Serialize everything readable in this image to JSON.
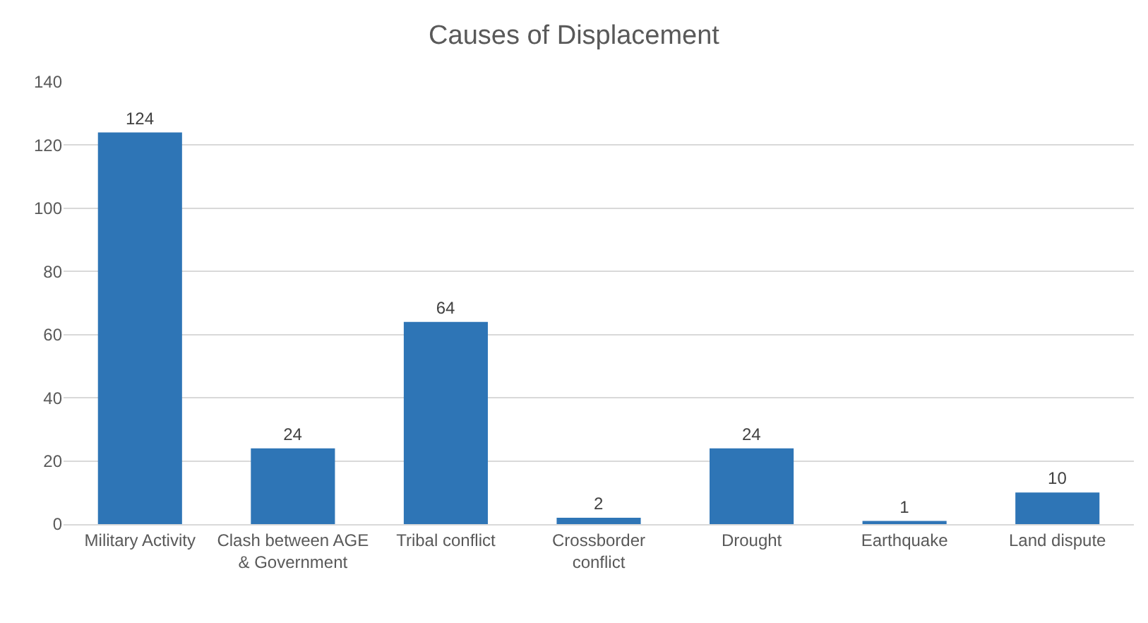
{
  "chart_data": {
    "type": "bar",
    "title": "Causes of Displacement",
    "categories": [
      "Military Activity",
      "Clash between AGE & Government",
      "Tribal conflict",
      "Crossborder conflict",
      "Drought",
      "Earthquake",
      "Land dispute"
    ],
    "values": [
      124,
      24,
      64,
      2,
      24,
      1,
      10
    ],
    "color": "#2e75b6",
    "ylim": [
      0,
      140
    ],
    "yticks": [
      0,
      20,
      40,
      60,
      80,
      100,
      120,
      140
    ],
    "grid": "y",
    "data_labels": true
  }
}
